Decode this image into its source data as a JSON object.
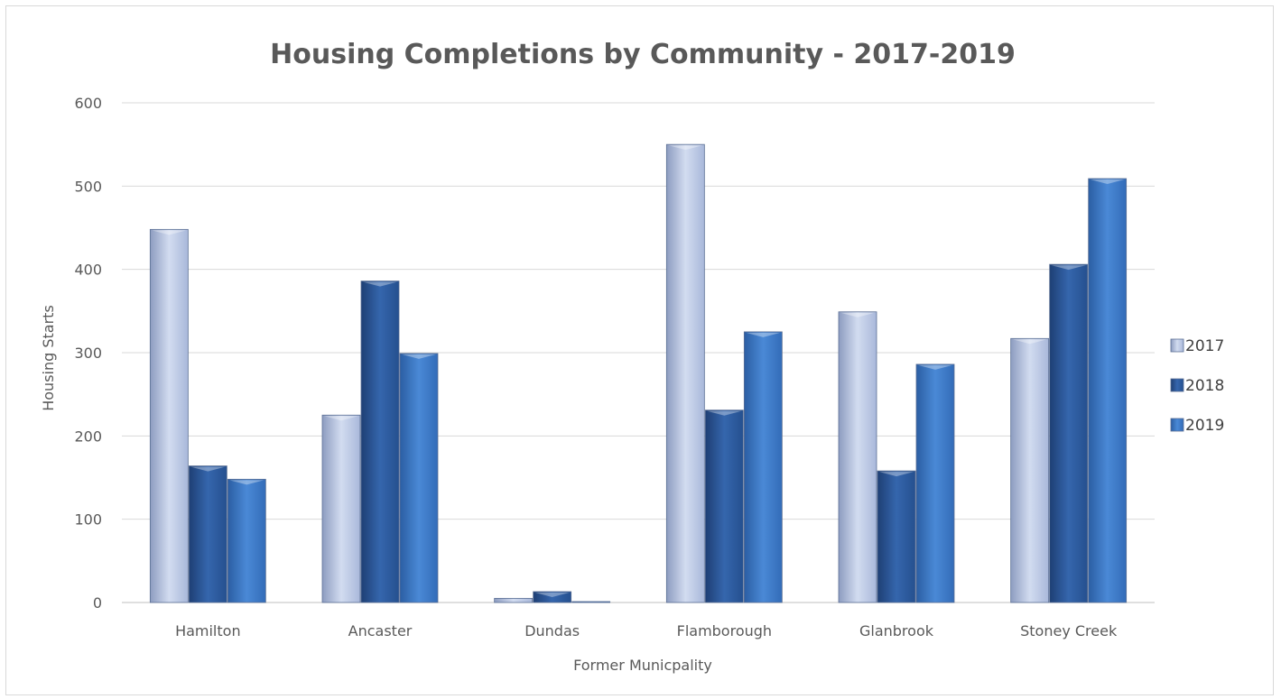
{
  "chart_data": {
    "type": "bar",
    "title": "Housing Completions by Community - 2017-2019",
    "xlabel": "Former Municpality",
    "ylabel": "Housing Starts",
    "categories": [
      "Hamilton",
      "Ancaster",
      "Dundas",
      "Flamborough",
      "Glanbrook",
      "Stoney Creek"
    ],
    "series": [
      {
        "name": "2017",
        "values": [
          448,
          225,
          5,
          550,
          349,
          317
        ],
        "color": "#b4c3e3"
      },
      {
        "name": "2018",
        "values": [
          164,
          386,
          13,
          231,
          158,
          406
        ],
        "color": "#2f5a9c"
      },
      {
        "name": "2019",
        "values": [
          148,
          299,
          1,
          325,
          286,
          509
        ],
        "color": "#3d78c9"
      }
    ],
    "ylim": [
      0,
      600
    ],
    "yticks": [
      0,
      100,
      200,
      300,
      400,
      500,
      600
    ],
    "grid": true,
    "legend_position": "right"
  }
}
